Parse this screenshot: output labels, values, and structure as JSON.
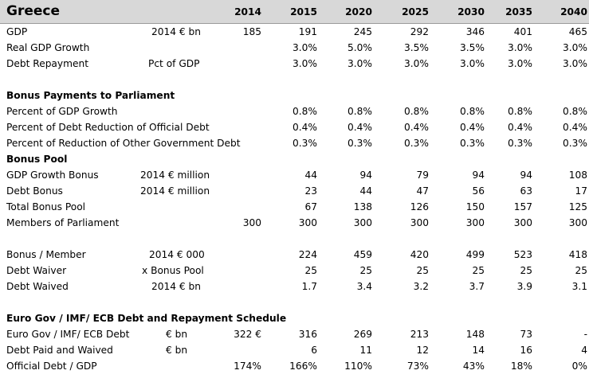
{
  "title": "Greece",
  "years": [
    "2014",
    "2015",
    "2020",
    "2025",
    "2030",
    "2035",
    "2040"
  ],
  "rows": [
    {
      "label": "GDP",
      "unit": "2014 € bn",
      "unit_pos": "a",
      "values": [
        "185",
        "191",
        "245",
        "292",
        "346",
        "401",
        "465"
      ]
    },
    {
      "label": "Real GDP Growth",
      "unit": "",
      "values": [
        "",
        "3.0%",
        "5.0%",
        "3.5%",
        "3.5%",
        "3.0%",
        "3.0%"
      ]
    },
    {
      "label": "Debt Repayment",
      "unit": "Pct of GDP",
      "unit_pos": "b",
      "values": [
        "",
        "3.0%",
        "3.0%",
        "3.0%",
        "3.0%",
        "3.0%",
        "3.0%"
      ]
    },
    {
      "label": "",
      "values": []
    },
    {
      "label": "Bonus Payments to Parliament",
      "bold": true,
      "values": []
    },
    {
      "label": "Percent of GDP Growth",
      "unit": "",
      "values": [
        "",
        "0.8%",
        "0.8%",
        "0.8%",
        "0.8%",
        "0.8%",
        "0.8%"
      ]
    },
    {
      "label": "Percent of Debt Reduction of Official Debt",
      "unit": "",
      "values": [
        "",
        "0.4%",
        "0.4%",
        "0.4%",
        "0.4%",
        "0.4%",
        "0.4%"
      ]
    },
    {
      "label": "Percent of Reduction of Other Government Debt",
      "unit": "",
      "values": [
        "",
        "0.3%",
        "0.3%",
        "0.3%",
        "0.3%",
        "0.3%",
        "0.3%"
      ]
    },
    {
      "label": "Bonus Pool",
      "bold": true,
      "values": []
    },
    {
      "label": "GDP Growth Bonus",
      "unit": "2014 € million",
      "unit_pos": "c",
      "values": [
        "",
        "44",
        "94",
        "79",
        "94",
        "94",
        "108"
      ]
    },
    {
      "label": "Debt Bonus",
      "unit": "2014 € million",
      "unit_pos": "c",
      "values": [
        "",
        "23",
        "44",
        "47",
        "56",
        "63",
        "17"
      ]
    },
    {
      "label": "Total Bonus Pool",
      "unit": "",
      "values": [
        "",
        "67",
        "138",
        "126",
        "150",
        "157",
        "125"
      ]
    },
    {
      "label": "Members of Parliament",
      "unit": "",
      "values": [
        "300",
        "300",
        "300",
        "300",
        "300",
        "300",
        "300"
      ]
    },
    {
      "label": "",
      "values": []
    },
    {
      "label": "Bonus / Member",
      "unit": "2014 € 000",
      "unit_pos": "d",
      "values": [
        "",
        "224",
        "459",
        "420",
        "499",
        "523",
        "418"
      ]
    },
    {
      "label": "Debt Waiver",
      "unit": "x Bonus Pool",
      "unit_pos": "e",
      "values": [
        "",
        "25",
        "25",
        "25",
        "25",
        "25",
        "25"
      ]
    },
    {
      "label": "Debt Waived",
      "unit": "2014 € bn",
      "unit_pos": "a",
      "values": [
        "",
        "1.7",
        "3.4",
        "3.2",
        "3.7",
        "3.9",
        "3.1"
      ]
    },
    {
      "label": "",
      "values": []
    },
    {
      "label": "Euro Gov / IMF/ ECB Debt and Repayment Schedule",
      "bold": true,
      "values": []
    },
    {
      "label": "Euro Gov / IMF/ ECB Debt",
      "unit": "€ bn",
      "unit_pos": "f",
      "values": [
        "322 €",
        "316",
        "269",
        "213",
        "148",
        "73",
        "-"
      ]
    },
    {
      "label": "Debt Paid and Waived",
      "unit": "€ bn",
      "unit_pos": "f",
      "values": [
        "",
        "6",
        "11",
        "12",
        "14",
        "16",
        "4"
      ]
    },
    {
      "label": "Official Debt / GDP",
      "unit": "",
      "values": [
        "174%",
        "166%",
        "110%",
        "73%",
        "43%",
        "18%",
        "0%"
      ]
    }
  ]
}
